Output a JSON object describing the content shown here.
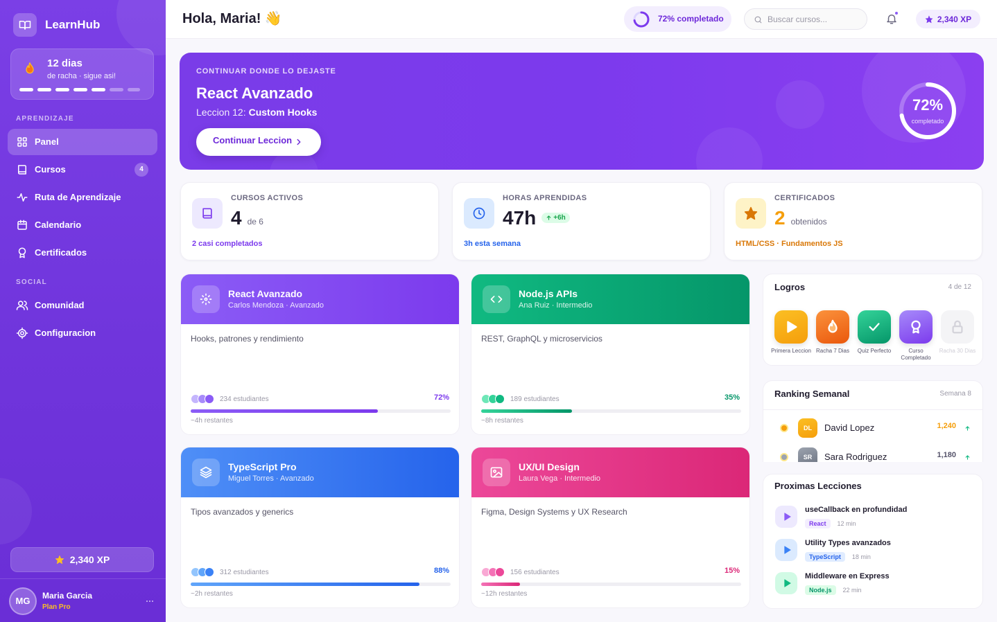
{
  "sidebar": {
    "brand": "LearnHub",
    "streak": {
      "title": "12 dias",
      "subtitle": "de racha · sigue asi!"
    },
    "sections": [
      {
        "title": "APRENDIZAJE",
        "items": [
          {
            "label": "Panel"
          },
          {
            "label": "Cursos",
            "badge": 4
          },
          {
            "label": "Ruta de Aprendizaje"
          },
          {
            "label": "Calendario"
          },
          {
            "label": "Certificados"
          }
        ]
      },
      {
        "title": "SOCIAL",
        "items": [
          {
            "label": "Comunidad"
          },
          {
            "label": "Configuracion"
          }
        ]
      }
    ],
    "xp": "2,340 XP",
    "user": {
      "initials": "MG",
      "name": "Maria Garcia",
      "plan": "Plan Pro"
    }
  },
  "header": {
    "greeting": "Hola, Maria! 👋",
    "progress": {
      "value": 72,
      "label": "72% completado"
    },
    "search_placeholder": "Buscar cursos...",
    "xp": "2,340 XP"
  },
  "hero": {
    "eyebrow": "CONTINUAR DONDE LO DEJASTE",
    "title": "React Avanzado",
    "lesson_prefix": "Leccion 12:",
    "lesson_name": "Custom Hooks",
    "button": "Continuar Leccion",
    "progress": {
      "value": 72,
      "label": "72%"
    },
    "progress_caption": "completado"
  },
  "stats": [
    {
      "label": "CURSOS ACTIVOS",
      "value": 4,
      "suffix": "de 6",
      "footer": "2 casi completados"
    },
    {
      "label": "HORAS APRENDIDAS",
      "value": "47h",
      "badge": "+6h",
      "footer": "3h esta semana"
    },
    {
      "label": "CERTIFICADOS",
      "value": 2,
      "suffix": "obtenidos",
      "footer": "HTML/CSS · Fundamentos JS"
    }
  ],
  "courses": [
    {
      "title": "React Avanzado",
      "meta": "Carlos Mendoza · Avanzado",
      "description": "Hooks, patrones y rendimiento",
      "students": "234 estudiantes",
      "progress": {
        "value": 72,
        "label": "72%"
      },
      "remaining": "~4h restantes"
    },
    {
      "title": "Node.js APIs",
      "meta": "Ana Ruiz · Intermedio",
      "description": "REST, GraphQL y microservicios",
      "students": "189 estudiantes",
      "progress": {
        "value": 35,
        "label": "35%"
      },
      "remaining": "~8h restantes"
    },
    {
      "title": "TypeScript Pro",
      "meta": "Miguel Torres · Avanzado",
      "description": "Tipos avanzados y generics",
      "students": "312 estudiantes",
      "progress": {
        "value": 88,
        "label": "88%"
      },
      "remaining": "~2h restantes"
    },
    {
      "title": "UX/UI Design",
      "meta": "Laura Vega · Intermedio",
      "description": "Figma, Design Systems y UX Research",
      "students": "156 estudiantes",
      "progress": {
        "value": 15,
        "label": "15%"
      },
      "remaining": "~12h restantes"
    }
  ],
  "achievements": {
    "title": "Logros",
    "count": "4 de 12",
    "items": [
      {
        "label": "Primera Leccion"
      },
      {
        "label": "Racha 7 Dias"
      },
      {
        "label": "Quiz Perfecto"
      },
      {
        "label": "Curso Completado"
      },
      {
        "label": "Racha 30 Dias"
      }
    ]
  },
  "ranking": {
    "title": "Ranking Semanal",
    "week": "Semana 8",
    "rows": [
      {
        "initials": "DL",
        "name": "David Lopez",
        "points": "1,240"
      },
      {
        "initials": "SR",
        "name": "Sara Rodriguez",
        "points": "1,180"
      }
    ]
  },
  "lessons": {
    "title": "Proximas Lecciones",
    "items": [
      {
        "title": "useCallback en profundidad",
        "tag": "React",
        "duration": "12 min"
      },
      {
        "title": "Utility Types avanzados",
        "tag": "TypeScript",
        "duration": "18 min"
      },
      {
        "title": "Middleware en Express",
        "tag": "Node.js",
        "duration": "22 min"
      }
    ]
  }
}
